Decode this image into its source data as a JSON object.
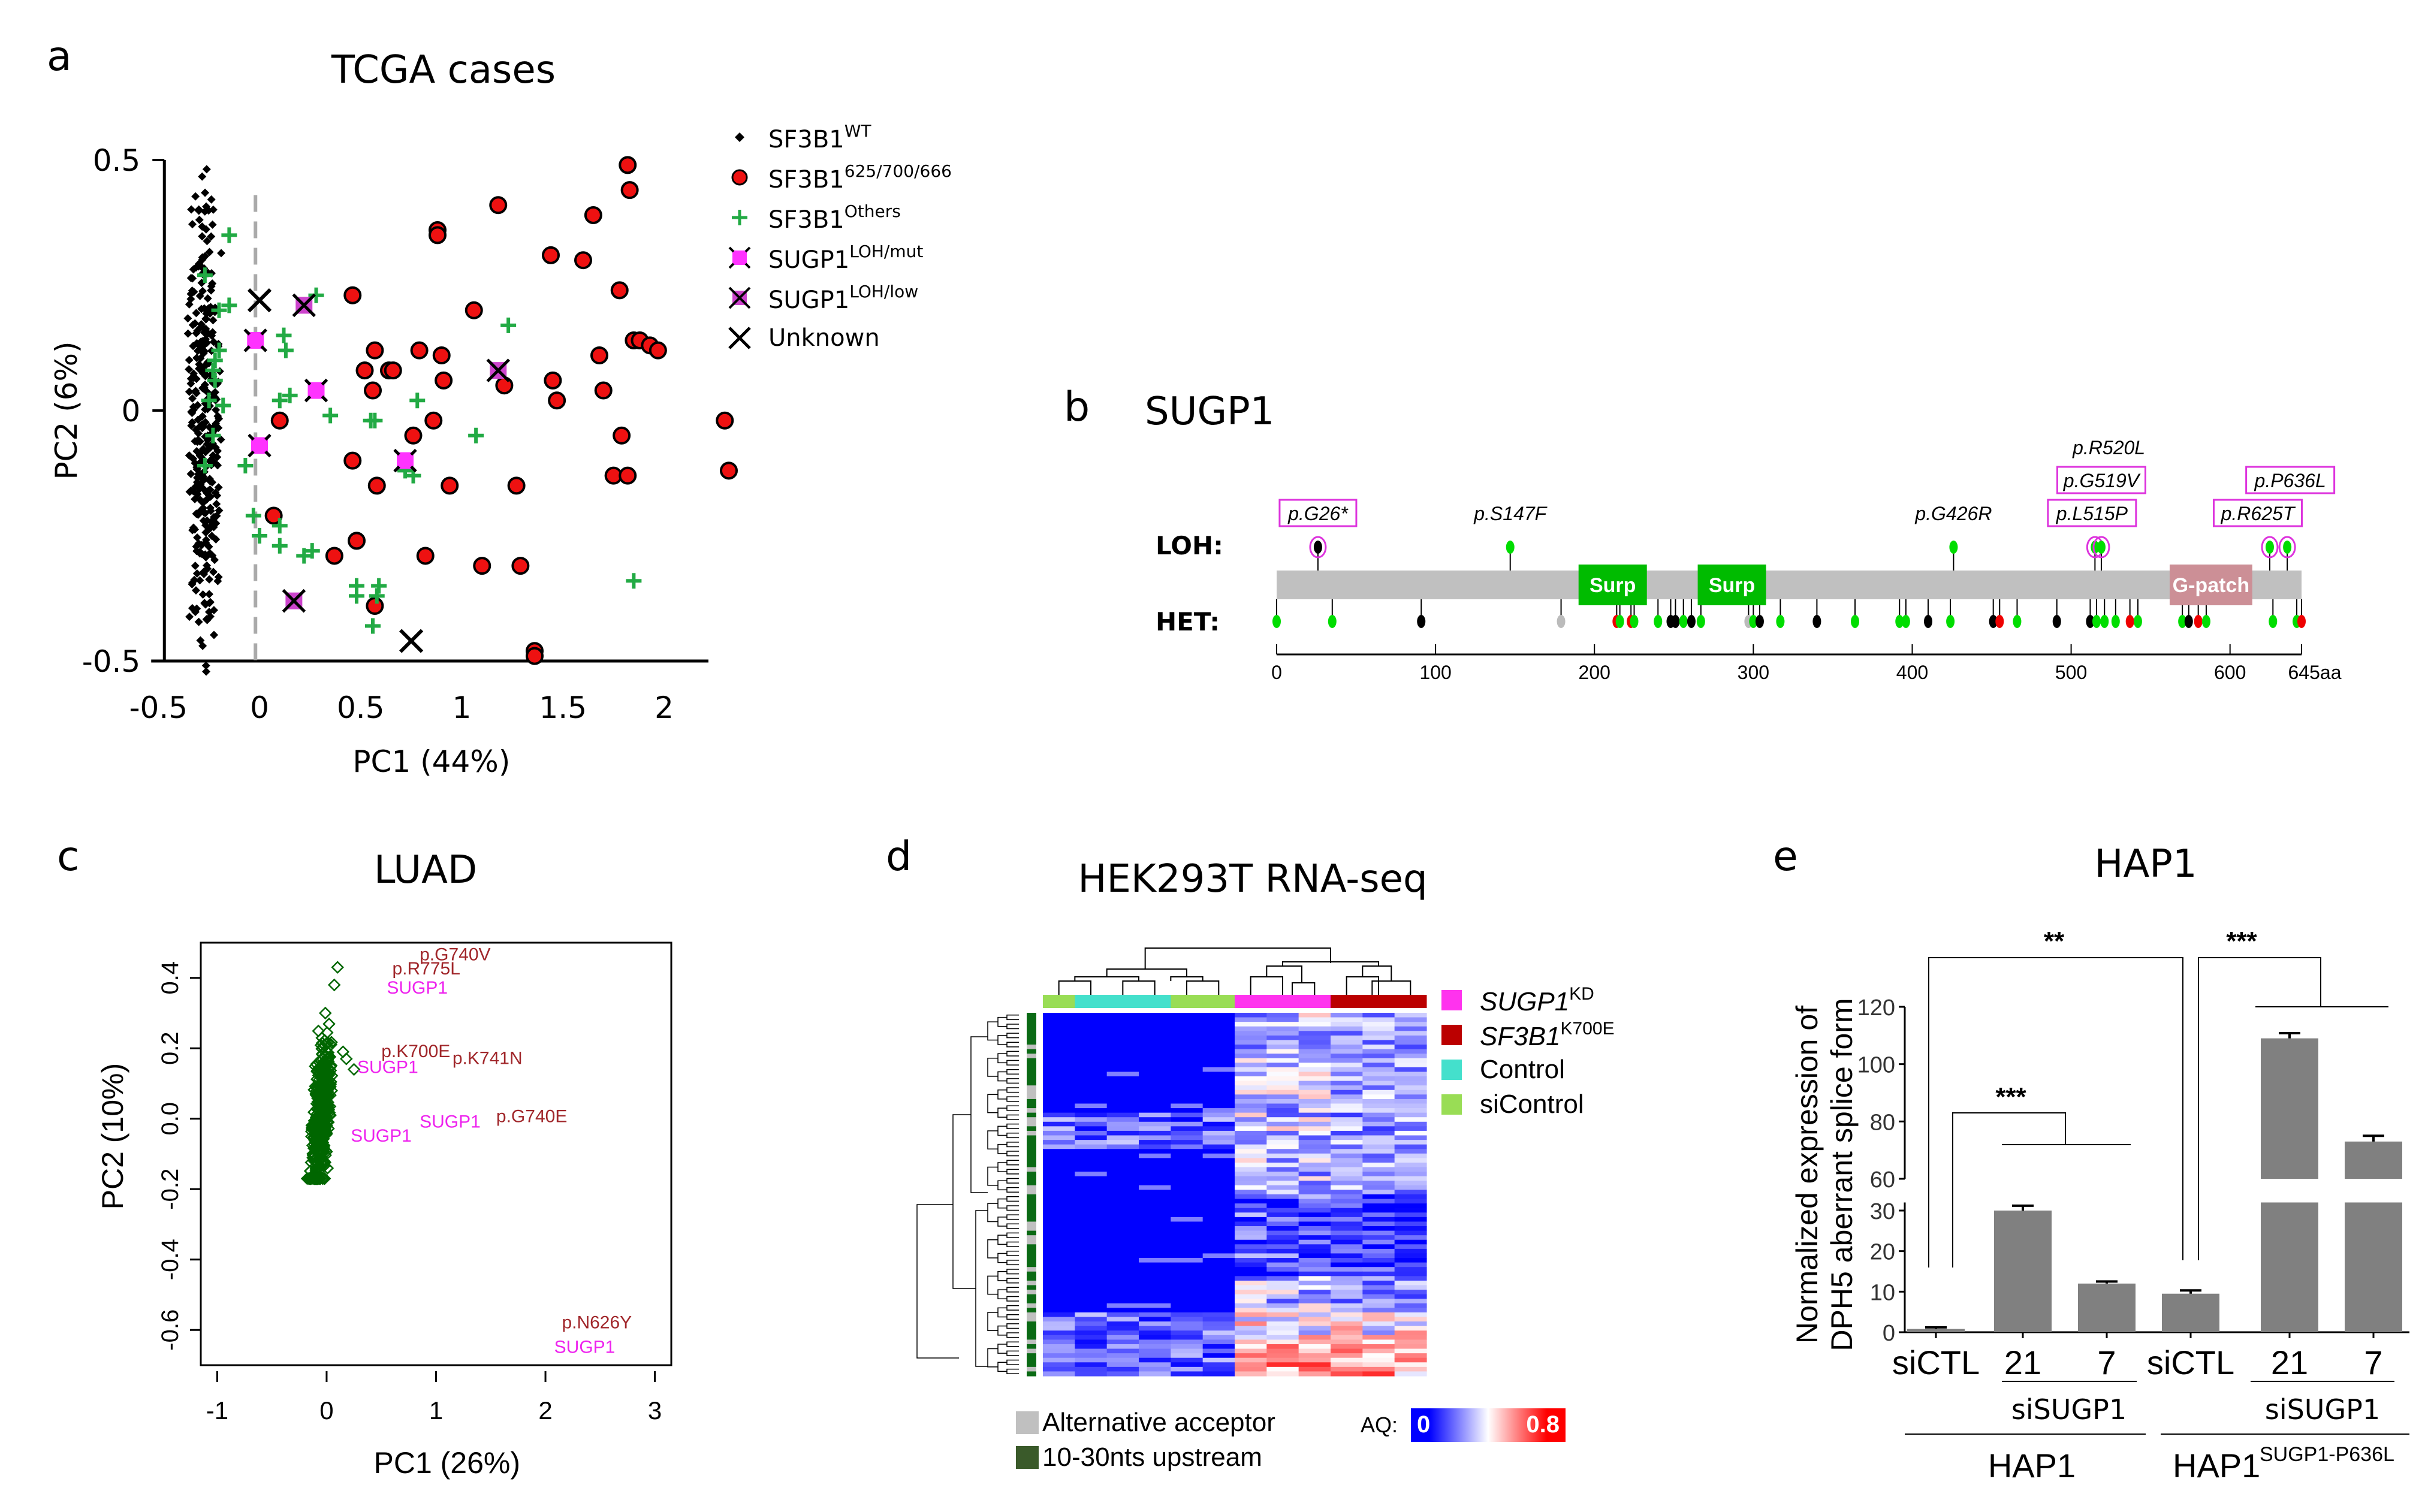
{
  "panels": {
    "a": {
      "letter": "a",
      "title": "TCGA cases"
    },
    "b": {
      "letter": "b",
      "title": "SUGP1"
    },
    "c": {
      "letter": "c",
      "title": "LUAD"
    },
    "d": {
      "letter": "d",
      "title": "HEK293T RNA-seq"
    },
    "e": {
      "letter": "e",
      "title": "HAP1"
    }
  },
  "chart_data": [
    {
      "id": "a",
      "type": "scatter",
      "title": "TCGA cases",
      "xlabel": "PC1 (44%)",
      "ylabel": "PC2 (6%)",
      "xlim": [
        -0.5,
        2.3
      ],
      "ylim": [
        -0.5,
        0.5
      ],
      "xticks": [
        "-0.5",
        "0",
        "0.5",
        "1",
        "1.5",
        "2"
      ],
      "xtick_values": [
        -0.5,
        0,
        0.5,
        1,
        1.5,
        2
      ],
      "yticks": [
        "-0.5",
        "0",
        "0.5"
      ],
      "ytick_values": [
        -0.5,
        0,
        0.5
      ],
      "reference_line_x": -0.02,
      "legend": [
        {
          "key": "wt",
          "base": "SF3B1",
          "sup": "WT",
          "color": "#000000",
          "marker": "diamond"
        },
        {
          "key": "hot",
          "base": "SF3B1",
          "sup": "625/700/666",
          "color": "#ee1111",
          "marker": "circle"
        },
        {
          "key": "oth",
          "base": "SF3B1",
          "sup": "Others",
          "color": "#22aa44",
          "marker": "plus"
        },
        {
          "key": "mut",
          "base": "SUGP1",
          "sup": "LOH/mut",
          "color": "#ff33ff",
          "marker": "square-cross"
        },
        {
          "key": "low",
          "base": "SUGP1",
          "sup": "LOH/low",
          "color": "#cc44cc",
          "marker": "square-x"
        },
        {
          "key": "unk",
          "base": "Unknown",
          "sup": "",
          "color": "#000000",
          "marker": "x"
        }
      ],
      "series": {
        "hot": [
          [
            1.82,
            0.49
          ],
          [
            1.83,
            0.44
          ],
          [
            1.18,
            0.41
          ],
          [
            1.65,
            0.39
          ],
          [
            0.88,
            0.36
          ],
          [
            0.88,
            0.35
          ],
          [
            1.44,
            0.31
          ],
          [
            1.6,
            0.3
          ],
          [
            1.78,
            0.24
          ],
          [
            0.46,
            0.23
          ],
          [
            1.06,
            0.2
          ],
          [
            1.85,
            0.14
          ],
          [
            1.88,
            0.14
          ],
          [
            1.93,
            0.13
          ],
          [
            1.97,
            0.12
          ],
          [
            0.57,
            0.12
          ],
          [
            0.79,
            0.12
          ],
          [
            0.9,
            0.11
          ],
          [
            1.68,
            0.11
          ],
          [
            0.52,
            0.08
          ],
          [
            0.64,
            0.08
          ],
          [
            0.66,
            0.08
          ],
          [
            1.45,
            0.06
          ],
          [
            0.91,
            0.06
          ],
          [
            1.21,
            0.05
          ],
          [
            0.56,
            0.04
          ],
          [
            1.7,
            0.04
          ],
          [
            1.47,
            0.02
          ],
          [
            0.1,
            -0.02
          ],
          [
            0.86,
            -0.02
          ],
          [
            2.3,
            -0.02
          ],
          [
            0.76,
            -0.05
          ],
          [
            1.79,
            -0.05
          ],
          [
            0.46,
            -0.1
          ],
          [
            1.75,
            -0.13
          ],
          [
            1.82,
            -0.13
          ],
          [
            2.32,
            -0.12
          ],
          [
            0.58,
            -0.15
          ],
          [
            0.94,
            -0.15
          ],
          [
            1.27,
            -0.15
          ],
          [
            0.48,
            -0.26
          ],
          [
            0.07,
            -0.21
          ],
          [
            0.37,
            -0.29
          ],
          [
            0.82,
            -0.29
          ],
          [
            1.1,
            -0.31
          ],
          [
            1.29,
            -0.31
          ],
          [
            0.57,
            -0.39
          ],
          [
            1.36,
            -0.48
          ],
          [
            1.36,
            -0.49
          ]
        ],
        "oth": [
          [
            -0.15,
            0.35
          ],
          [
            -0.27,
            0.27
          ],
          [
            -0.15,
            0.21
          ],
          [
            -0.2,
            0.2
          ],
          [
            0.28,
            0.23
          ],
          [
            0.12,
            0.15
          ],
          [
            0.13,
            0.12
          ],
          [
            -0.2,
            0.12
          ],
          [
            -0.22,
            0.1
          ],
          [
            -0.23,
            0.08
          ],
          [
            -0.22,
            0.06
          ],
          [
            1.23,
            0.17
          ],
          [
            0.1,
            0.02
          ],
          [
            0.15,
            0.03
          ],
          [
            0.35,
            -0.01
          ],
          [
            0.78,
            0.02
          ],
          [
            -0.25,
            0.02
          ],
          [
            -0.18,
            0.01
          ],
          [
            0.55,
            -0.02
          ],
          [
            0.57,
            -0.02
          ],
          [
            1.07,
            -0.05
          ],
          [
            -0.23,
            -0.05
          ],
          [
            -0.27,
            -0.11
          ],
          [
            -0.07,
            -0.11
          ],
          [
            0.72,
            -0.12
          ],
          [
            0.76,
            -0.13
          ],
          [
            -0.03,
            -0.21
          ],
          [
            0.1,
            -0.23
          ],
          [
            0.0,
            -0.25
          ],
          [
            0.1,
            -0.27
          ],
          [
            0.22,
            -0.29
          ],
          [
            0.26,
            -0.28
          ],
          [
            0.48,
            -0.35
          ],
          [
            0.59,
            -0.35
          ],
          [
            0.48,
            -0.37
          ],
          [
            0.58,
            -0.37
          ],
          [
            1.85,
            -0.34
          ],
          [
            0.56,
            -0.43
          ]
        ],
        "mut": [
          [
            -0.02,
            0.14
          ],
          [
            0.28,
            0.04
          ],
          [
            0.0,
            -0.07
          ],
          [
            0.72,
            -0.1
          ]
        ],
        "low": [
          [
            0.22,
            0.21
          ],
          [
            1.18,
            0.08
          ],
          [
            0.17,
            -0.38
          ]
        ],
        "unk": [
          [
            0.0,
            0.22
          ],
          [
            0.75,
            -0.46
          ]
        ]
      }
    },
    {
      "id": "b",
      "type": "lollipop",
      "title": "SUGP1",
      "protein_length": 645,
      "axis_ticks": [
        "0",
        "100",
        "200",
        "300",
        "400",
        "500",
        "600",
        "645aa"
      ],
      "axis_tick_values": [
        0,
        100,
        200,
        300,
        400,
        500,
        600,
        645
      ],
      "row_labels": {
        "loh": "LOH:",
        "het": "HET:"
      },
      "domains": [
        {
          "name": "Surp",
          "start": 190,
          "end": 233,
          "color": "#00bb00"
        },
        {
          "name": "Surp",
          "start": 265,
          "end": 308,
          "color": "#00bb00"
        },
        {
          "name": "G-patch",
          "start": 562,
          "end": 614,
          "color": "#cc8f96"
        }
      ],
      "loh_mutations": [
        {
          "pos": 26,
          "label": "p.G26*",
          "color": "#000000",
          "boxed": true,
          "circled": true
        },
        {
          "pos": 147,
          "label": "p.S147F",
          "color": "#00dd00",
          "boxed": false,
          "circled": false
        },
        {
          "pos": 426,
          "label": "p.G426R",
          "color": "#00dd00",
          "boxed": false,
          "circled": false
        },
        {
          "pos": 515,
          "label": "p.L515P",
          "color": "#00dd00",
          "boxed": true,
          "circled": true
        },
        {
          "pos": 519,
          "label": "p.G519V",
          "color": "#00dd00",
          "boxed": true,
          "circled": true
        },
        {
          "pos": 520,
          "label": "p.R520L",
          "color": "#00dd00",
          "boxed": false,
          "circled": false
        },
        {
          "pos": 625,
          "label": "p.R625T",
          "color": "#00dd00",
          "boxed": true,
          "circled": true
        },
        {
          "pos": 636,
          "label": "p.P636L",
          "color": "#00dd00",
          "boxed": true,
          "circled": true
        }
      ],
      "het_mutations": [
        {
          "pos": 0,
          "color": "#00dd00"
        },
        {
          "pos": 35,
          "color": "#00dd00"
        },
        {
          "pos": 91,
          "color": "#000000"
        },
        {
          "pos": 179,
          "color": "#bbbbbb"
        },
        {
          "pos": 214,
          "color": "#ee0000"
        },
        {
          "pos": 216,
          "color": "#00dd00"
        },
        {
          "pos": 223,
          "color": "#ee0000"
        },
        {
          "pos": 225,
          "color": "#00dd00"
        },
        {
          "pos": 240,
          "color": "#00dd00"
        },
        {
          "pos": 248,
          "color": "#000000"
        },
        {
          "pos": 251,
          "color": "#000000"
        },
        {
          "pos": 256,
          "color": "#00dd00"
        },
        {
          "pos": 261,
          "color": "#000000"
        },
        {
          "pos": 267,
          "color": "#00dd00"
        },
        {
          "pos": 297,
          "color": "#bbbbbb"
        },
        {
          "pos": 300,
          "color": "#00dd00"
        },
        {
          "pos": 304,
          "color": "#000000"
        },
        {
          "pos": 317,
          "color": "#00dd00"
        },
        {
          "pos": 340,
          "color": "#000000"
        },
        {
          "pos": 364,
          "color": "#00dd00"
        },
        {
          "pos": 392,
          "color": "#00dd00"
        },
        {
          "pos": 396,
          "color": "#00dd00"
        },
        {
          "pos": 410,
          "color": "#000000"
        },
        {
          "pos": 424,
          "color": "#00dd00"
        },
        {
          "pos": 451,
          "color": "#000000"
        },
        {
          "pos": 455,
          "color": "#ee0000"
        },
        {
          "pos": 466,
          "color": "#00dd00"
        },
        {
          "pos": 491,
          "color": "#000000"
        },
        {
          "pos": 512,
          "color": "#000000"
        },
        {
          "pos": 516,
          "color": "#00dd00"
        },
        {
          "pos": 521,
          "color": "#00dd00"
        },
        {
          "pos": 528,
          "color": "#00dd00"
        },
        {
          "pos": 537,
          "color": "#ee0000"
        },
        {
          "pos": 542,
          "color": "#00dd00"
        },
        {
          "pos": 570,
          "color": "#00dd00"
        },
        {
          "pos": 574,
          "color": "#000000"
        },
        {
          "pos": 580,
          "color": "#ee0000"
        },
        {
          "pos": 585,
          "color": "#00dd00"
        },
        {
          "pos": 627,
          "color": "#00dd00"
        },
        {
          "pos": 642,
          "color": "#00dd00"
        },
        {
          "pos": 645,
          "color": "#ee0000"
        }
      ]
    },
    {
      "id": "c",
      "type": "scatter",
      "title": "LUAD",
      "xlabel": "PC1 (26%)",
      "ylabel": "PC2 (10%)",
      "xlim": [
        -1.15,
        3.15
      ],
      "ylim": [
        -0.7,
        0.5
      ],
      "xticks": [
        "-1",
        "0",
        "1",
        "2",
        "3"
      ],
      "xtick_values": [
        -1,
        0,
        1,
        2,
        3
      ],
      "yticks": [
        "-0.6",
        "-0.4",
        "-0.2",
        "0.0",
        "0.2",
        "0.4"
      ],
      "ytick_values": [
        -0.6,
        -0.4,
        -0.2,
        0.0,
        0.2,
        0.4
      ],
      "point_color": "#006600",
      "outliers": [
        [
          0.1,
          0.43
        ],
        [
          0.07,
          0.38
        ],
        [
          0.25,
          0.14
        ],
        [
          0.18,
          0.17
        ],
        [
          0.15,
          0.19
        ]
      ],
      "annotations": [
        {
          "text": "p.G740V",
          "x": 0.85,
          "y": 0.45,
          "color": "#a0262a"
        },
        {
          "text": "p.R775L",
          "x": 0.6,
          "y": 0.41,
          "color": "#a0262a"
        },
        {
          "text": "SUGP1",
          "x": 0.55,
          "y": 0.355,
          "color": "#ee22ee"
        },
        {
          "text": "p.K700E",
          "x": 0.5,
          "y": 0.175,
          "color": "#a0262a"
        },
        {
          "text": "p.K741N",
          "x": 1.15,
          "y": 0.155,
          "color": "#a0262a"
        },
        {
          "text": "SUGP1",
          "x": 0.28,
          "y": 0.13,
          "color": "#ee22ee"
        },
        {
          "text": "p.G740E",
          "x": 1.55,
          "y": -0.01,
          "color": "#a0262a"
        },
        {
          "text": "SUGP1",
          "x": 0.85,
          "y": -0.025,
          "color": "#ee22ee"
        },
        {
          "text": "SUGP1",
          "x": 0.22,
          "y": -0.065,
          "color": "#ee22ee"
        },
        {
          "text": "p.N626Y",
          "x": 2.15,
          "y": -0.595,
          "color": "#a0262a"
        },
        {
          "text": "SUGP1",
          "x": 2.08,
          "y": -0.665,
          "color": "#ee22ee"
        }
      ]
    },
    {
      "id": "d",
      "type": "heatmap",
      "title": "HEK293T RNA-seq",
      "columns": 12,
      "column_groups": [
        "siControl",
        "Control",
        "Control",
        "Control",
        "siControl",
        "siControl",
        "SUGP1KD",
        "SUGP1KD",
        "SUGP1KD",
        "SF3B1K700E",
        "SF3B1K700E",
        "SF3B1K700E"
      ],
      "group_colors": {
        "SUGP1KD": "#ff33ee",
        "SF3B1K700E": "#bb0000",
        "Control": "#44e0cc",
        "siControl": "#99dd55"
      },
      "legend": [
        {
          "key": "SUGP1KD",
          "base": "SUGP1",
          "sup": "KD",
          "italic": true
        },
        {
          "key": "SF3B1K700E",
          "base": "SF3B1",
          "sup": "K700E",
          "italic": true
        },
        {
          "key": "Control",
          "base": "Control",
          "sup": "",
          "italic": false
        },
        {
          "key": "siControl",
          "base": "siControl",
          "sup": "",
          "italic": false
        }
      ],
      "row_annotation_legend": [
        {
          "label": "Alternative acceptor",
          "color": "#c0c0c0"
        },
        {
          "label": "10-30nts upstream",
          "color": "#3a5a2a"
        }
      ],
      "colorbar": {
        "label": "AQ:",
        "min": "0",
        "max": "0.8"
      },
      "rows": 80
    },
    {
      "id": "e",
      "type": "bar",
      "title": "HAP1",
      "ylabel_line1": "Normalized  expression of",
      "ylabel_line2": "DPH5 aberrant splice form",
      "categories": [
        "siCTL",
        "21",
        "7",
        "siCTL",
        "21",
        "7"
      ],
      "values": [
        0.8,
        30,
        12,
        9.5,
        109,
        73
      ],
      "errors": [
        0.4,
        1.2,
        0.5,
        0.8,
        1.8,
        2.0
      ],
      "yticks_lower": [
        "0",
        "10",
        "20",
        "30"
      ],
      "yticks_lower_values": [
        0,
        10,
        20,
        30
      ],
      "yticks_upper": [
        "60",
        "80",
        "100",
        "120"
      ],
      "yticks_upper_values": [
        60,
        80,
        100,
        120
      ],
      "axis_break": [
        32,
        60
      ],
      "bar_color": "#808080",
      "significance": [
        {
          "label": "**",
          "from": 0,
          "to": 3
        },
        {
          "label": "***",
          "from": 0,
          "to": "1-2"
        },
        {
          "label": "***",
          "from": 3,
          "to": "4-5"
        }
      ],
      "group_labels": {
        "sisugp1_a": "siSUGP1",
        "sisugp1_b": "siSUGP1",
        "cell1": "HAP1",
        "cell2_base": "HAP1",
        "cell2_sup": "SUGP1-P636L"
      }
    }
  ]
}
